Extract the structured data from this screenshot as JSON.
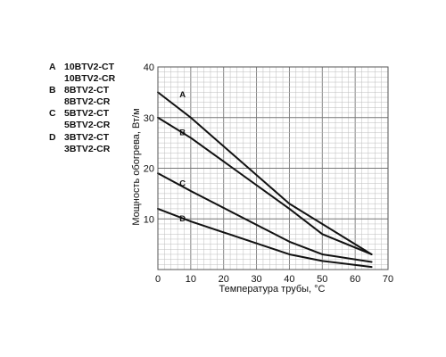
{
  "legend": [
    {
      "letter": "A",
      "names": [
        "10BTV2-CT",
        "10BTV2-CR"
      ]
    },
    {
      "letter": "B",
      "names": [
        "8BTV2-CT",
        "8BTV2-CR"
      ]
    },
    {
      "letter": "C",
      "names": [
        "5BTV2-CT",
        "5BTV2-CR"
      ]
    },
    {
      "letter": "D",
      "names": [
        "3BTV2-CT",
        "3BTV2-CR"
      ]
    }
  ],
  "chart_data": {
    "type": "line",
    "title": "",
    "xlabel": "Температура трубы, °C",
    "ylabel": "Мощность обогрева, Вт/м",
    "xlim": [
      0,
      70
    ],
    "ylim": [
      0,
      40
    ],
    "xticks": [
      0,
      10,
      20,
      30,
      40,
      50,
      60,
      70
    ],
    "yticks": [
      10,
      20,
      30,
      40
    ],
    "grid": true,
    "series": [
      {
        "name": "A",
        "x": [
          0,
          10,
          40,
          65
        ],
        "y": [
          35,
          30,
          13,
          3
        ]
      },
      {
        "name": "B",
        "x": [
          0,
          10,
          40,
          50,
          65
        ],
        "y": [
          30,
          26,
          12,
          7,
          3
        ]
      },
      {
        "name": "C",
        "x": [
          0,
          10,
          40,
          50,
          65
        ],
        "y": [
          19,
          15.5,
          5.5,
          3,
          1.5
        ]
      },
      {
        "name": "D",
        "x": [
          0,
          10,
          40,
          50,
          65
        ],
        "y": [
          12,
          9.5,
          3,
          1.7,
          0.5
        ]
      }
    ],
    "series_label_positions": [
      {
        "name": "A",
        "x": 7.5,
        "y": 34
      },
      {
        "name": "B",
        "x": 7.5,
        "y": 26.5
      },
      {
        "name": "C",
        "x": 7.5,
        "y": 16.5
      },
      {
        "name": "D",
        "x": 7.5,
        "y": 9.5
      }
    ]
  }
}
